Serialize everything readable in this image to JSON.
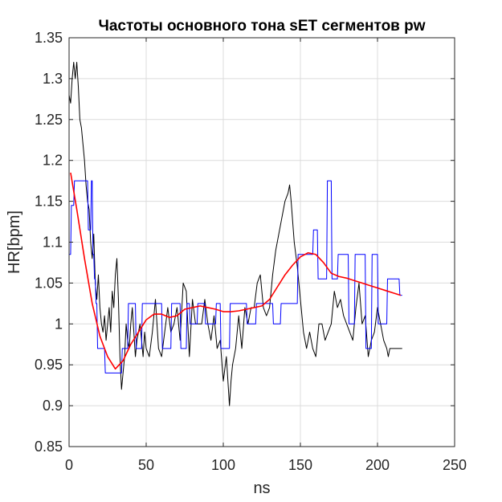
{
  "chart_data": {
    "type": "line",
    "title": "Частоты основного тона sET сегментов pw",
    "xlabel": "ns",
    "ylabel": "HR[bpm]",
    "xlim": [
      0,
      250
    ],
    "ylim": [
      0.85,
      1.35
    ],
    "xticks": [
      0,
      50,
      100,
      150,
      200,
      250
    ],
    "yticks": [
      0.85,
      0.9,
      0.95,
      1,
      1.05,
      1.1,
      1.15,
      1.2,
      1.25,
      1.3,
      1.35
    ],
    "xtick_labels": [
      "0",
      "50",
      "100",
      "150",
      "200",
      "250"
    ],
    "ytick_labels": [
      "0.85",
      "0.9",
      "0.95",
      "1",
      "1.05",
      "1.1",
      "1.15",
      "1.2",
      "1.25",
      "1.3",
      "1.35"
    ],
    "grid": true,
    "series": [
      {
        "color": "#000000",
        "x": [
          0,
          1,
          2,
          3,
          4,
          5,
          6,
          7,
          8,
          9,
          10,
          11,
          12,
          13,
          14,
          15,
          16,
          17,
          18,
          19,
          20,
          21,
          22,
          23,
          24,
          25,
          26,
          27,
          28,
          29,
          30,
          31,
          32,
          33,
          34,
          35,
          36,
          37,
          38,
          39,
          40,
          41,
          42,
          43,
          44,
          45,
          46,
          47,
          48,
          49,
          50,
          52,
          54,
          56,
          58,
          60,
          62,
          64,
          66,
          68,
          70,
          72,
          74,
          76,
          78,
          80,
          82,
          84,
          86,
          88,
          90,
          92,
          94,
          96,
          98,
          100,
          102,
          104,
          105,
          106,
          108,
          110,
          112,
          114,
          116,
          118,
          120,
          122,
          124,
          126,
          128,
          130,
          132,
          134,
          136,
          138,
          140,
          142,
          143,
          144,
          146,
          148,
          150,
          152,
          154,
          156,
          158,
          160,
          162,
          164,
          166,
          168,
          170,
          172,
          174,
          176,
          178,
          180,
          182,
          184,
          186,
          188,
          190,
          192,
          194,
          196,
          198,
          200,
          202,
          204,
          206,
          207,
          208,
          210,
          212,
          214,
          216
        ],
        "y": [
          1.28,
          1.27,
          1.3,
          1.32,
          1.3,
          1.32,
          1.29,
          1.25,
          1.24,
          1.22,
          1.2,
          1.17,
          1.15,
          1.14,
          1.1,
          1.08,
          1.11,
          1.05,
          1.03,
          1.06,
          1.02,
          1.0,
          0.99,
          1.01,
          0.98,
          1.0,
          1.02,
          0.99,
          1.04,
          1.02,
          1.06,
          1.08,
          1.03,
          0.96,
          0.92,
          0.94,
          0.96,
          1.0,
          0.98,
          0.97,
          1.0,
          1.02,
          0.99,
          0.96,
          0.98,
          0.99,
          1.0,
          0.98,
          0.96,
          0.99,
          0.97,
          0.96,
          0.99,
          1.03,
          0.97,
          0.96,
          0.99,
          1.02,
          0.99,
          1.0,
          1.02,
          0.98,
          1.05,
          1.04,
          0.96,
          1.03,
          1.0,
          1.0,
          1.0,
          1.03,
          1.0,
          0.98,
          1.01,
          0.97,
          0.98,
          0.93,
          0.96,
          0.9,
          0.93,
          0.95,
          0.97,
          1.01,
          0.97,
          1.02,
          1.0,
          1.02,
          1.02,
          1.05,
          1.06,
          1.02,
          1.01,
          1.02,
          1.06,
          1.09,
          1.11,
          1.13,
          1.15,
          1.16,
          1.17,
          1.15,
          1.1,
          1.07,
          1.03,
          0.99,
          0.97,
          0.99,
          0.97,
          0.96,
          1.0,
          1.0,
          0.98,
          0.99,
          1.0,
          1.04,
          1.02,
          1.03,
          1.01,
          1.0,
          0.99,
          0.98,
          1.02,
          1.05,
          1.0,
          1.01,
          0.96,
          0.98,
          0.99,
          1.02,
          1.0,
          0.98,
          0.97,
          0.96,
          0.97,
          0.97,
          0.97,
          0.97,
          0.97
        ]
      },
      {
        "color": "#0000ff",
        "x": [
          0,
          1,
          1.5,
          3,
          3.5,
          6,
          6.5,
          12,
          12.5,
          14,
          14.5,
          15,
          15.5,
          16,
          16.5,
          17,
          17.5,
          18,
          18.5,
          21,
          21.5,
          23,
          23.5,
          28,
          28.5,
          34,
          34.5,
          38,
          38.5,
          43,
          43.5,
          47,
          47.5,
          50,
          50.5,
          60,
          60.5,
          66,
          66.5,
          72,
          72.5,
          76,
          76.5,
          78,
          78.5,
          83,
          83.5,
          88,
          88.5,
          95,
          95.5,
          98,
          98.5,
          104,
          104.5,
          115,
          115.5,
          121,
          121.5,
          132,
          132.5,
          137,
          137.5,
          148,
          148.5,
          158,
          158.5,
          161,
          161.5,
          167,
          167.5,
          170,
          170.5,
          174,
          174.5,
          181,
          181.5,
          185,
          185.5,
          192,
          192.5,
          196,
          196.5,
          200,
          200.5,
          206,
          206.5,
          210,
          210.5,
          214,
          214.5,
          216
        ],
        "y": [
          1.085,
          1.085,
          1.145,
          1.145,
          1.175,
          1.175,
          1.175,
          1.175,
          1.115,
          1.115,
          1.175,
          1.175,
          1.085,
          1.085,
          1.055,
          1.055,
          1.025,
          1.025,
          0.97,
          0.97,
          0.97,
          0.97,
          0.94,
          0.94,
          0.94,
          0.94,
          0.97,
          0.97,
          1.025,
          1.025,
          0.97,
          0.97,
          1.025,
          1.025,
          1.025,
          1.025,
          0.97,
          0.97,
          1.025,
          1.025,
          0.97,
          0.97,
          1.025,
          1.025,
          1.0,
          1.0,
          1.025,
          1.025,
          1.0,
          1.0,
          1.025,
          1.025,
          0.97,
          0.97,
          1.025,
          1.025,
          1.0,
          1.0,
          1.025,
          1.025,
          1.0,
          1.0,
          1.025,
          1.025,
          1.085,
          1.085,
          1.115,
          1.115,
          1.055,
          1.055,
          1.175,
          1.175,
          1.055,
          1.055,
          1.085,
          1.085,
          1.0,
          1.0,
          1.085,
          1.085,
          0.97,
          0.97,
          1.085,
          1.085,
          1.0,
          1.0,
          1.055,
          1.055,
          1.055,
          1.055,
          1.035,
          1.035
        ]
      },
      {
        "color": "#ff0000",
        "x": [
          1,
          5,
          10,
          15,
          20,
          25,
          30,
          35,
          40,
          45,
          50,
          55,
          60,
          65,
          70,
          75,
          80,
          85,
          90,
          95,
          100,
          105,
          110,
          115,
          120,
          125,
          130,
          135,
          140,
          145,
          150,
          155,
          160,
          165,
          170,
          175,
          180,
          185,
          190,
          195,
          200,
          205,
          210,
          215
        ],
        "y": [
          1.185,
          1.14,
          1.08,
          1.025,
          0.985,
          0.96,
          0.945,
          0.955,
          0.975,
          0.99,
          1.005,
          1.012,
          1.012,
          1.008,
          1.01,
          1.018,
          1.02,
          1.022,
          1.02,
          1.018,
          1.015,
          1.015,
          1.016,
          1.018,
          1.02,
          1.022,
          1.03,
          1.045,
          1.06,
          1.072,
          1.082,
          1.087,
          1.085,
          1.075,
          1.062,
          1.058,
          1.056,
          1.053,
          1.05,
          1.047,
          1.044,
          1.041,
          1.038,
          1.035
        ]
      }
    ]
  }
}
